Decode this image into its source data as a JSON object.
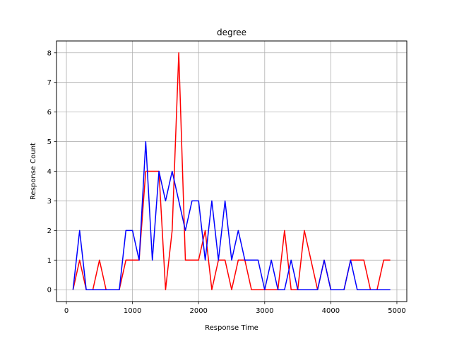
{
  "chart_data": {
    "type": "line",
    "title": "degree",
    "xlabel": "Response Time",
    "ylabel": "Response Count",
    "xlim": [
      -150,
      5150
    ],
    "ylim": [
      -0.4,
      8.4
    ],
    "xticks": [
      0,
      1000,
      2000,
      3000,
      4000,
      5000
    ],
    "yticks": [
      0,
      1,
      2,
      3,
      4,
      5,
      6,
      7,
      8
    ],
    "grid": true,
    "x": [
      100,
      200,
      300,
      400,
      500,
      600,
      700,
      800,
      900,
      1000,
      1100,
      1200,
      1300,
      1400,
      1500,
      1600,
      1700,
      1800,
      1900,
      2000,
      2100,
      2200,
      2300,
      2400,
      2500,
      2600,
      2700,
      2800,
      2900,
      3000,
      3100,
      3200,
      3300,
      3400,
      3500,
      3600,
      3700,
      3800,
      3900,
      4000,
      4100,
      4200,
      4300,
      4400,
      4500,
      4600,
      4700,
      4800,
      4900
    ],
    "series": [
      {
        "color": "#ff0000",
        "values": [
          0,
          1,
          0,
          0,
          1,
          0,
          0,
          0,
          1,
          1,
          1,
          4,
          4,
          4,
          0,
          2,
          8,
          1,
          1,
          1,
          2,
          0,
          1,
          1,
          0,
          1,
          1,
          0,
          0,
          0,
          0,
          0,
          2,
          0,
          0,
          2,
          1,
          0,
          1,
          0,
          0,
          0,
          1,
          1,
          1,
          0,
          0,
          1,
          1
        ]
      },
      {
        "color": "#0000ff",
        "values": [
          0,
          2,
          0,
          0,
          0,
          0,
          0,
          0,
          2,
          2,
          1,
          5,
          1,
          4,
          3,
          4,
          3,
          2,
          3,
          3,
          1,
          3,
          1,
          3,
          1,
          2,
          1,
          1,
          1,
          0,
          1,
          0,
          0,
          1,
          0,
          0,
          0,
          0,
          1,
          0,
          0,
          0,
          1,
          0,
          0,
          0,
          0,
          0,
          0
        ]
      }
    ]
  }
}
